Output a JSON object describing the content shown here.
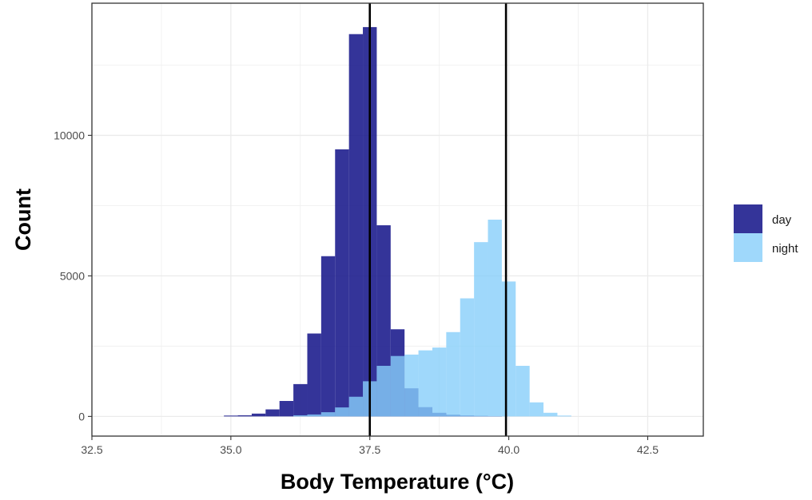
{
  "chart_data": {
    "type": "histogram",
    "xlabel": "Body Temperature (°C)",
    "ylabel": "Count",
    "xlim": [
      32.5,
      43.5
    ],
    "ylim": [
      -700,
      14700
    ],
    "x_ticks": [
      32.5,
      35.0,
      37.5,
      40.0,
      42.5
    ],
    "x_tick_labels": [
      "32.5",
      "35.0",
      "37.5",
      "40.0",
      "42.5"
    ],
    "y_ticks": [
      0,
      5000,
      10000
    ],
    "y_tick_labels": [
      "0",
      "5000",
      "10000"
    ],
    "grid": true,
    "bin_width": 0.25,
    "legend_position": "right",
    "legend": [
      "day",
      "night"
    ],
    "series": [
      {
        "name": "day",
        "color": "#1e1e8e",
        "opacity": 0.9,
        "bins": [
          {
            "x0": 34.875,
            "count": 30
          },
          {
            "x0": 35.125,
            "count": 40
          },
          {
            "x0": 35.375,
            "count": 100
          },
          {
            "x0": 35.625,
            "count": 250
          },
          {
            "x0": 35.875,
            "count": 550
          },
          {
            "x0": 36.125,
            "count": 1150
          },
          {
            "x0": 36.375,
            "count": 2950
          },
          {
            "x0": 36.625,
            "count": 5700
          },
          {
            "x0": 36.875,
            "count": 9500
          },
          {
            "x0": 37.125,
            "count": 13600
          },
          {
            "x0": 37.375,
            "count": 13850
          },
          {
            "x0": 37.625,
            "count": 6800
          },
          {
            "x0": 37.875,
            "count": 3100
          },
          {
            "x0": 38.125,
            "count": 1000
          },
          {
            "x0": 38.375,
            "count": 330
          },
          {
            "x0": 38.625,
            "count": 130
          },
          {
            "x0": 38.875,
            "count": 60
          },
          {
            "x0": 39.125,
            "count": 35
          },
          {
            "x0": 39.375,
            "count": 20
          },
          {
            "x0": 39.625,
            "count": 10
          }
        ]
      },
      {
        "name": "night",
        "color": "#87cefa",
        "opacity": 0.8,
        "bins": [
          {
            "x0": 36.125,
            "count": 40
          },
          {
            "x0": 36.375,
            "count": 70
          },
          {
            "x0": 36.625,
            "count": 150
          },
          {
            "x0": 36.875,
            "count": 320
          },
          {
            "x0": 37.125,
            "count": 700
          },
          {
            "x0": 37.375,
            "count": 1250
          },
          {
            "x0": 37.625,
            "count": 1800
          },
          {
            "x0": 37.875,
            "count": 2150
          },
          {
            "x0": 38.125,
            "count": 2200
          },
          {
            "x0": 38.375,
            "count": 2350
          },
          {
            "x0": 38.625,
            "count": 2450
          },
          {
            "x0": 38.875,
            "count": 3000
          },
          {
            "x0": 39.125,
            "count": 4200
          },
          {
            "x0": 39.375,
            "count": 6200
          },
          {
            "x0": 39.625,
            "count": 7000
          },
          {
            "x0": 39.875,
            "count": 4800
          },
          {
            "x0": 40.125,
            "count": 1800
          },
          {
            "x0": 40.375,
            "count": 500
          },
          {
            "x0": 40.625,
            "count": 130
          },
          {
            "x0": 40.875,
            "count": 30
          }
        ]
      }
    ],
    "reference_lines": [
      {
        "x": 37.5,
        "color": "#000000"
      },
      {
        "x": 39.95,
        "color": "#000000"
      }
    ]
  }
}
